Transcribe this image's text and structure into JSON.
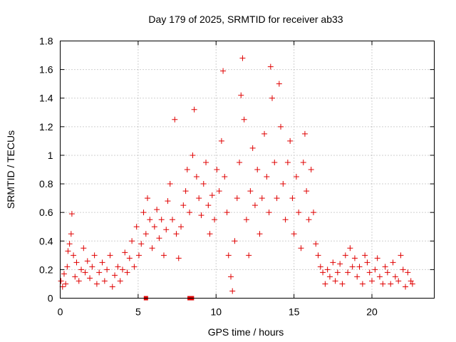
{
  "chart_data": {
    "type": "scatter",
    "title": "Day 179 of 2025, SRMTID for receiver ab33",
    "xlabel": "GPS time / hours",
    "ylabel": "SRMTID / TECUs",
    "xlim": [
      0,
      24
    ],
    "ylim": [
      0,
      1.8
    ],
    "xticks": [
      0,
      5,
      10,
      15,
      20
    ],
    "xtick_labels": [
      "0",
      "5",
      "10",
      "15",
      "20"
    ],
    "yticks": [
      0,
      0.2,
      0.4,
      0.6,
      0.8,
      1.0,
      1.2,
      1.4,
      1.6,
      1.8
    ],
    "ytick_labels": [
      "0",
      "0.2",
      "0.4",
      "0.6",
      "0.8",
      "1",
      "1.2",
      "1.4",
      "1.6",
      "1.8"
    ],
    "grid": true,
    "marker": "plus",
    "color": "#e00000",
    "zero_markers_x": [
      5.5,
      8.3,
      8.45
    ],
    "series": [
      {
        "name": "SRMTID",
        "points": [
          [
            0.05,
            0.12
          ],
          [
            0.15,
            0.08
          ],
          [
            0.25,
            0.17
          ],
          [
            0.35,
            0.1
          ],
          [
            0.45,
            0.22
          ],
          [
            0.5,
            0.33
          ],
          [
            0.6,
            0.38
          ],
          [
            0.7,
            0.45
          ],
          [
            0.75,
            0.59
          ],
          [
            0.85,
            0.3
          ],
          [
            0.95,
            0.15
          ],
          [
            1.05,
            0.25
          ],
          [
            1.2,
            0.12
          ],
          [
            1.35,
            0.2
          ],
          [
            1.5,
            0.35
          ],
          [
            1.6,
            0.18
          ],
          [
            1.75,
            0.26
          ],
          [
            1.9,
            0.14
          ],
          [
            2.05,
            0.22
          ],
          [
            2.2,
            0.3
          ],
          [
            2.35,
            0.1
          ],
          [
            2.5,
            0.18
          ],
          [
            2.7,
            0.25
          ],
          [
            2.85,
            0.12
          ],
          [
            3.0,
            0.2
          ],
          [
            3.2,
            0.3
          ],
          [
            3.35,
            0.08
          ],
          [
            3.5,
            0.16
          ],
          [
            3.7,
            0.22
          ],
          [
            3.85,
            0.12
          ],
          [
            4.0,
            0.2
          ],
          [
            4.15,
            0.32
          ],
          [
            4.3,
            0.18
          ],
          [
            4.45,
            0.28
          ],
          [
            4.6,
            0.4
          ],
          [
            4.75,
            0.22
          ],
          [
            4.9,
            0.5
          ],
          [
            5.05,
            0.3
          ],
          [
            5.2,
            0.38
          ],
          [
            5.35,
            0.6
          ],
          [
            5.5,
            0.45
          ],
          [
            5.6,
            0.7
          ],
          [
            5.75,
            0.55
          ],
          [
            5.9,
            0.35
          ],
          [
            6.05,
            0.5
          ],
          [
            6.2,
            0.62
          ],
          [
            6.35,
            0.42
          ],
          [
            6.5,
            0.55
          ],
          [
            6.65,
            0.3
          ],
          [
            6.8,
            0.48
          ],
          [
            6.9,
            0.68
          ],
          [
            7.05,
            0.8
          ],
          [
            7.2,
            0.55
          ],
          [
            7.35,
            1.25
          ],
          [
            7.45,
            0.45
          ],
          [
            7.6,
            0.28
          ],
          [
            7.75,
            0.5
          ],
          [
            7.9,
            0.65
          ],
          [
            8.05,
            0.75
          ],
          [
            8.15,
            0.9
          ],
          [
            8.3,
            0.6
          ],
          [
            8.5,
            1.0
          ],
          [
            8.6,
            1.32
          ],
          [
            8.75,
            0.85
          ],
          [
            8.9,
            0.7
          ],
          [
            9.05,
            0.58
          ],
          [
            9.2,
            0.8
          ],
          [
            9.35,
            0.95
          ],
          [
            9.5,
            0.65
          ],
          [
            9.6,
            0.45
          ],
          [
            9.75,
            0.72
          ],
          [
            9.9,
            0.55
          ],
          [
            10.05,
            0.9
          ],
          [
            10.2,
            0.75
          ],
          [
            10.35,
            1.1
          ],
          [
            10.45,
            1.59
          ],
          [
            10.55,
            0.85
          ],
          [
            10.7,
            0.6
          ],
          [
            10.8,
            0.3
          ],
          [
            10.95,
            0.15
          ],
          [
            11.05,
            0.05
          ],
          [
            11.2,
            0.4
          ],
          [
            11.35,
            0.7
          ],
          [
            11.5,
            0.95
          ],
          [
            11.6,
            1.42
          ],
          [
            11.7,
            1.68
          ],
          [
            11.8,
            1.25
          ],
          [
            11.95,
            0.55
          ],
          [
            12.1,
            0.3
          ],
          [
            12.2,
            0.75
          ],
          [
            12.35,
            1.05
          ],
          [
            12.5,
            0.65
          ],
          [
            12.65,
            0.9
          ],
          [
            12.8,
            0.45
          ],
          [
            12.95,
            0.7
          ],
          [
            13.1,
            1.15
          ],
          [
            13.25,
            0.85
          ],
          [
            13.4,
            0.6
          ],
          [
            13.5,
            1.62
          ],
          [
            13.6,
            1.4
          ],
          [
            13.75,
            0.95
          ],
          [
            13.9,
            0.7
          ],
          [
            14.05,
            1.5
          ],
          [
            14.15,
            1.2
          ],
          [
            14.3,
            0.8
          ],
          [
            14.45,
            0.55
          ],
          [
            14.6,
            0.95
          ],
          [
            14.75,
            1.1
          ],
          [
            14.9,
            0.7
          ],
          [
            15.0,
            0.45
          ],
          [
            15.15,
            0.85
          ],
          [
            15.3,
            0.6
          ],
          [
            15.45,
            0.35
          ],
          [
            15.6,
            0.95
          ],
          [
            15.7,
            1.15
          ],
          [
            15.8,
            0.75
          ],
          [
            15.95,
            0.55
          ],
          [
            16.1,
            0.9
          ],
          [
            16.25,
            0.6
          ],
          [
            16.4,
            0.38
          ],
          [
            16.55,
            0.3
          ],
          [
            16.7,
            0.22
          ],
          [
            16.85,
            0.18
          ],
          [
            17.0,
            0.1
          ],
          [
            17.15,
            0.2
          ],
          [
            17.3,
            0.15
          ],
          [
            17.5,
            0.25
          ],
          [
            17.65,
            0.12
          ],
          [
            17.8,
            0.18
          ],
          [
            17.95,
            0.24
          ],
          [
            18.1,
            0.1
          ],
          [
            18.3,
            0.3
          ],
          [
            18.45,
            0.18
          ],
          [
            18.6,
            0.35
          ],
          [
            18.75,
            0.22
          ],
          [
            18.9,
            0.28
          ],
          [
            19.05,
            0.15
          ],
          [
            19.2,
            0.22
          ],
          [
            19.4,
            0.1
          ],
          [
            19.55,
            0.3
          ],
          [
            19.7,
            0.25
          ],
          [
            19.85,
            0.18
          ],
          [
            20.0,
            0.12
          ],
          [
            20.2,
            0.2
          ],
          [
            20.35,
            0.28
          ],
          [
            20.5,
            0.15
          ],
          [
            20.7,
            0.1
          ],
          [
            20.85,
            0.22
          ],
          [
            21.0,
            0.18
          ],
          [
            21.2,
            0.1
          ],
          [
            21.35,
            0.25
          ],
          [
            21.5,
            0.15
          ],
          [
            21.7,
            0.12
          ],
          [
            21.85,
            0.3
          ],
          [
            22.0,
            0.2
          ],
          [
            22.15,
            0.08
          ],
          [
            22.3,
            0.18
          ],
          [
            22.5,
            0.12
          ],
          [
            22.6,
            0.1
          ]
        ]
      }
    ]
  }
}
